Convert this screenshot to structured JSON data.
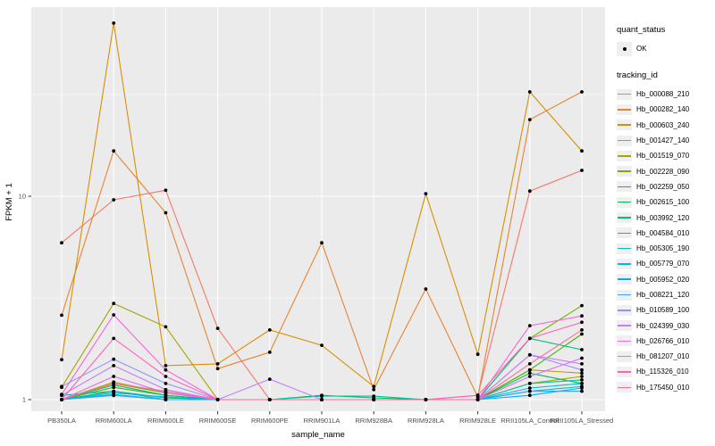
{
  "chart_data": {
    "type": "line",
    "title": "",
    "xlabel": "sample_name",
    "ylabel": "FPKM + 1",
    "y_scale": "log10",
    "y_ticks": [
      1,
      10
    ],
    "y_tick_labels": [
      "1",
      "10"
    ],
    "y_minor": [
      3.162,
      31.62
    ],
    "ylim": [
      0.88,
      85
    ],
    "grid": true,
    "legend_position": "right",
    "point_color": "#000000",
    "categories": [
      "PB350LA",
      "RRIM600LA",
      "RRIM600LE",
      "RRIM600SE",
      "RRIM600PE",
      "RRIM901LA",
      "RRIM928BA",
      "RRIM928LA",
      "RRIM928LE",
      "RRII105LA_Control",
      "RRII105LA_Stressed"
    ],
    "legend": {
      "quant_status_title": "quant_status",
      "quant_status_items": [
        "OK"
      ],
      "tracking_title": "tracking_id"
    },
    "series": [
      {
        "name": "Hb_000088_210",
        "color": "#F8766D",
        "values": [
          5.9,
          9.6,
          10.7,
          2.24,
          1.0,
          1.0,
          1.0,
          1.0,
          1.05,
          10.6,
          13.4
        ]
      },
      {
        "name": "Hb_000282_140",
        "color": "#EA8331",
        "values": [
          2.6,
          16.7,
          8.3,
          1.42,
          1.71,
          5.9,
          1.12,
          3.5,
          1.03,
          23.8,
          32.6
        ]
      },
      {
        "name": "Hb_000603_240",
        "color": "#D89000",
        "values": [
          1.57,
          71.0,
          1.47,
          1.5,
          2.2,
          1.85,
          1.16,
          10.3,
          1.67,
          32.6,
          16.7
        ]
      },
      {
        "name": "Hb_001427_140",
        "color": "#C09B00",
        "values": [
          1.0,
          1.22,
          1.08,
          1.0,
          1.0,
          1.0,
          1.0,
          1.0,
          1.0,
          1.4,
          1.35
        ]
      },
      {
        "name": "Hb_001519_070",
        "color": "#A3A500",
        "values": [
          1.15,
          2.97,
          2.28,
          1.0,
          1.0,
          1.0,
          1.0,
          1.0,
          1.0,
          1.2,
          1.3
        ]
      },
      {
        "name": "Hb_002228_090",
        "color": "#7CAE00",
        "values": [
          1.0,
          1.2,
          1.08,
          1.0,
          1.0,
          1.0,
          1.0,
          1.0,
          1.0,
          2.0,
          2.9
        ]
      },
      {
        "name": "Hb_002259_050",
        "color": "#39B600",
        "values": [
          1.0,
          1.15,
          1.05,
          1.0,
          1.0,
          1.0,
          1.0,
          1.0,
          1.0,
          1.4,
          2.1
        ]
      },
      {
        "name": "Hb_002615_100",
        "color": "#00BB4E",
        "values": [
          1.0,
          1.1,
          1.02,
          1.0,
          1.0,
          1.05,
          1.02,
          1.0,
          1.0,
          1.35,
          1.2
        ]
      },
      {
        "name": "Hb_003992_120",
        "color": "#00BF7D",
        "values": [
          1.0,
          1.18,
          1.05,
          1.0,
          1.0,
          1.0,
          1.0,
          1.0,
          1.0,
          2.0,
          1.76
        ]
      },
      {
        "name": "Hb_004584_010",
        "color": "#00C1A3",
        "values": [
          1.05,
          1.1,
          1.0,
          1.0,
          1.0,
          1.04,
          1.04,
          1.0,
          1.0,
          1.2,
          1.25
        ]
      },
      {
        "name": "Hb_005305_190",
        "color": "#00BFC4",
        "values": [
          1.0,
          1.06,
          1.0,
          1.0,
          1.0,
          1.0,
          1.0,
          1.0,
          1.0,
          1.1,
          1.16
        ]
      },
      {
        "name": "Hb_005779_070",
        "color": "#00BAE0",
        "values": [
          1.0,
          1.05,
          1.0,
          1.0,
          1.0,
          1.0,
          1.0,
          1.0,
          1.0,
          1.14,
          1.2
        ]
      },
      {
        "name": "Hb_005952_020",
        "color": "#00B0F6",
        "values": [
          1.0,
          1.08,
          1.03,
          1.0,
          1.0,
          1.0,
          1.0,
          1.0,
          1.0,
          1.05,
          1.14
        ]
      },
      {
        "name": "Hb_008221_120",
        "color": "#35A2FF",
        "values": [
          1.0,
          1.05,
          1.0,
          1.0,
          1.0,
          1.0,
          1.0,
          1.0,
          1.0,
          1.1,
          1.1
        ]
      },
      {
        "name": "Hb_010589_100",
        "color": "#9590FF",
        "values": [
          1.16,
          1.58,
          1.2,
          1.0,
          1.0,
          1.0,
          1.0,
          1.0,
          1.0,
          1.66,
          1.4
        ]
      },
      {
        "name": "Hb_024399_030",
        "color": "#C77CFF",
        "values": [
          1.05,
          1.47,
          1.12,
          1.0,
          1.26,
          1.0,
          1.0,
          1.0,
          1.0,
          1.66,
          1.5
        ]
      },
      {
        "name": "Hb_026766_010",
        "color": "#E76BF3",
        "values": [
          1.0,
          1.3,
          1.08,
          1.0,
          1.0,
          1.0,
          1.0,
          1.0,
          1.0,
          1.3,
          1.6
        ]
      },
      {
        "name": "Hb_081207_010",
        "color": "#FA62DB",
        "values": [
          1.06,
          2.61,
          1.4,
          1.0,
          1.0,
          1.0,
          1.0,
          1.0,
          1.0,
          2.31,
          2.58
        ]
      },
      {
        "name": "Hb_115326_010",
        "color": "#FF62BC",
        "values": [
          1.0,
          2.0,
          1.3,
          1.0,
          1.0,
          1.0,
          1.0,
          1.0,
          1.05,
          2.0,
          2.4
        ]
      },
      {
        "name": "Hb_175450_010",
        "color": "#FF6A98",
        "values": [
          1.0,
          1.2,
          1.1,
          1.0,
          1.0,
          1.0,
          1.0,
          1.0,
          1.0,
          1.5,
          2.2
        ]
      }
    ],
    "colors": {
      "panel_bg": "#EBEBEB",
      "gridline": "#FFFFFF",
      "tick_text": "#4D4D4D",
      "axis_text": "#000000",
      "legend_key_bg": "#EFEFEF"
    }
  }
}
